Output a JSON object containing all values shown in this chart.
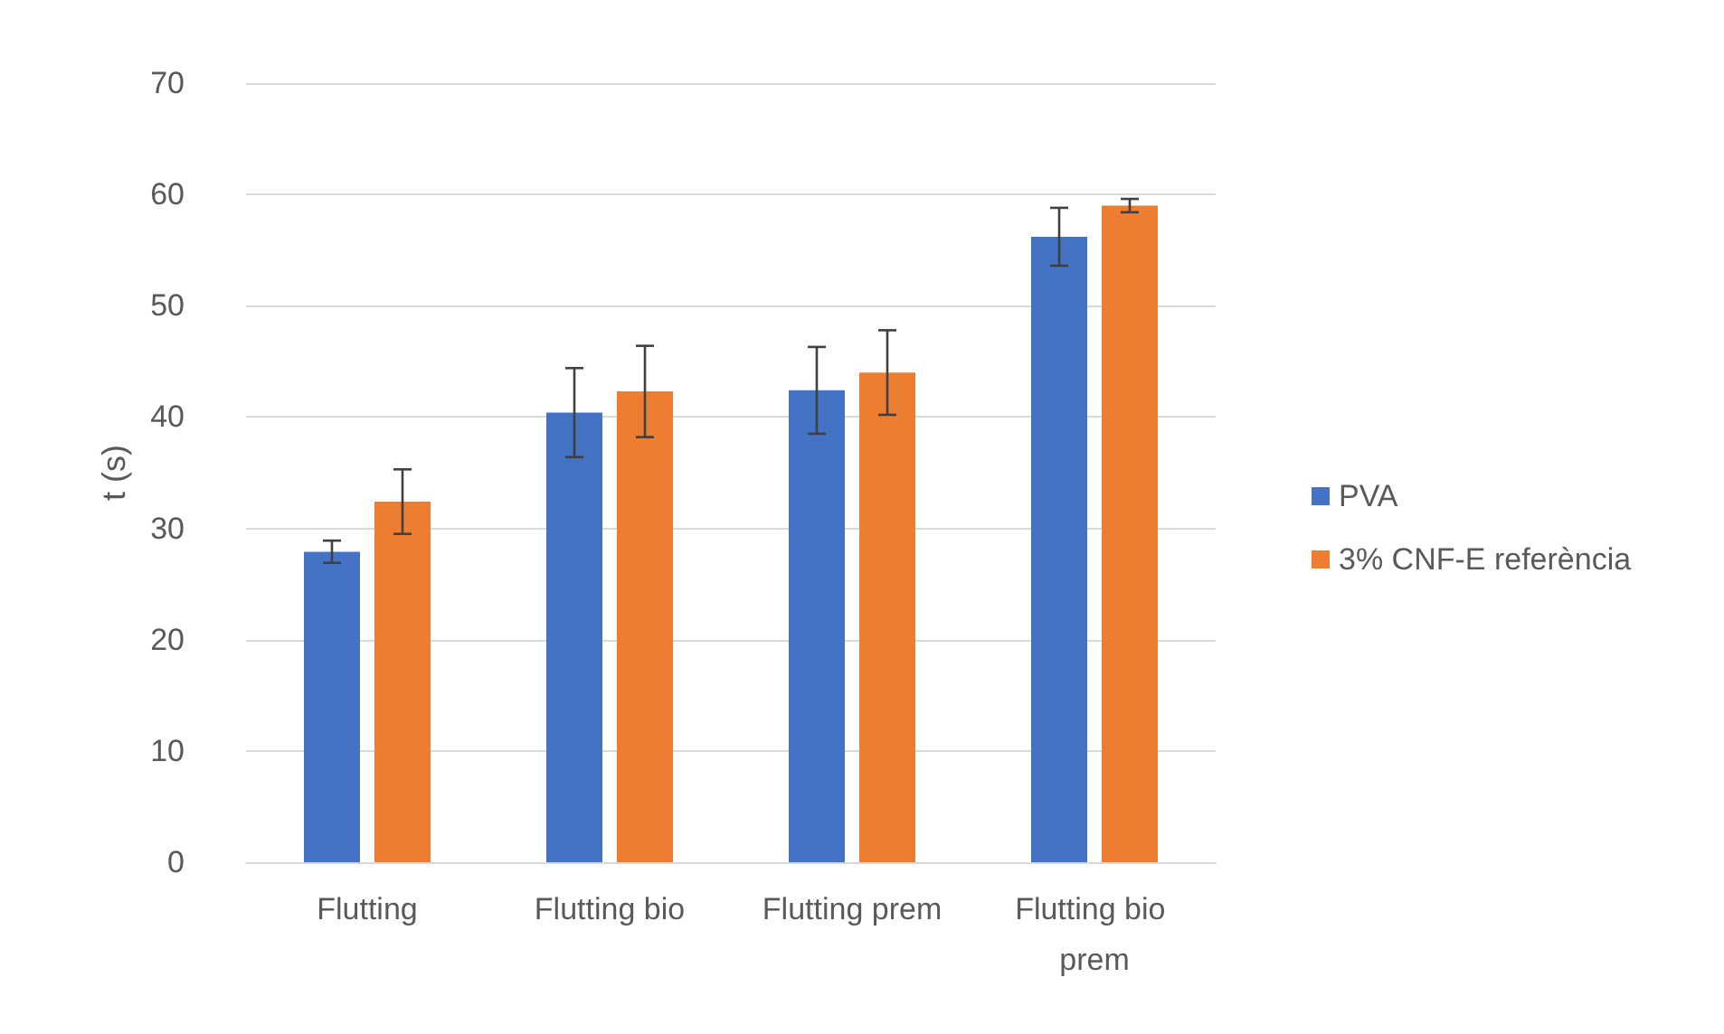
{
  "chart_data": {
    "type": "bar",
    "ylabel": "t (s)",
    "categories": [
      "Flutting",
      "Flutting bio",
      "Flutting prem",
      "Flutting bio prem"
    ],
    "series": [
      {
        "name": "PVA",
        "color": "#4472c4",
        "values": [
          27.9,
          40.4,
          42.4,
          56.2
        ],
        "errors": [
          1.0,
          4.0,
          3.9,
          2.6
        ]
      },
      {
        "name": "3% CNF-E referència",
        "color": "#ed7d31",
        "values": [
          32.4,
          42.3,
          44.0,
          59.0
        ],
        "errors": [
          2.9,
          4.1,
          3.8,
          0.6
        ]
      }
    ],
    "ylim": [
      0,
      70
    ],
    "yticks": [
      0,
      10,
      20,
      30,
      40,
      50,
      60,
      70
    ],
    "grid": "y",
    "legend": "right"
  }
}
